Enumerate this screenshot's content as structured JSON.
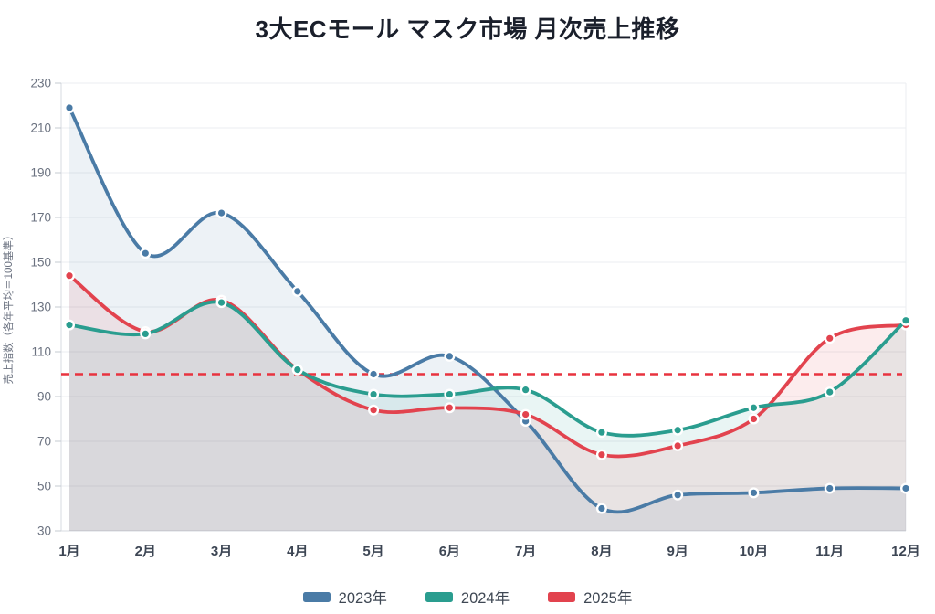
{
  "title": "3大ECモール マスク市場 月次売上推移",
  "chart_data": {
    "type": "line",
    "title": "3大ECモール マスク市場 月次売上推移",
    "categories": [
      "1月",
      "2月",
      "3月",
      "4月",
      "5月",
      "6月",
      "7月",
      "8月",
      "9月",
      "10月",
      "11月",
      "12月"
    ],
    "series": [
      {
        "name": "2023年",
        "color": "#4a7ba6",
        "values": [
          219,
          154,
          172,
          137,
          100,
          108,
          79,
          40,
          46,
          47,
          49,
          49
        ]
      },
      {
        "name": "2024年",
        "color": "#2a9d8f",
        "values": [
          122,
          118,
          132,
          102,
          91,
          91,
          93,
          74,
          75,
          85,
          92,
          124
        ]
      },
      {
        "name": "2025年",
        "color": "#e2434e",
        "values": [
          144,
          119,
          133,
          102,
          84,
          85,
          82,
          64,
          68,
          80,
          116,
          122
        ]
      }
    ],
    "xlabel": "",
    "ylabel": "売上指数（各年平均＝100基準）",
    "ylim": [
      30,
      230
    ],
    "yticks": [
      30,
      50,
      70,
      90,
      110,
      130,
      150,
      170,
      190,
      210,
      230
    ],
    "reference_line": {
      "value": 100,
      "color": "#e8333f",
      "style": "dashed"
    },
    "grid": true,
    "smooth": true,
    "area_fill": true,
    "area_fill_opacity": 0.1,
    "marker": "circle",
    "legend_position": "bottom"
  },
  "colors": {
    "grid": "#ebedf0",
    "axis": "#d7dbe1",
    "tick_mark": "#c6cbd2",
    "tick_label": "#6b7280",
    "x_label": "#3d4654",
    "title_text": "#1a1f2b",
    "legend_text": "#3f4854",
    "background": "#ffffff"
  }
}
